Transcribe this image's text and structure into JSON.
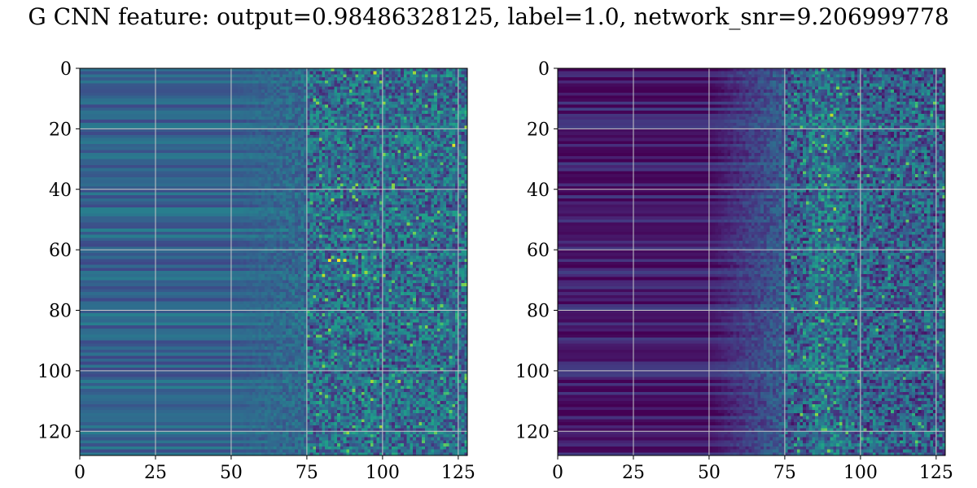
{
  "figure": {
    "title": "G CNN feature: output=0.98486328125, label=1.0, network_snr=9.206999778"
  },
  "chart_data": [
    {
      "type": "heatmap",
      "panel": "left",
      "colormap": "viridis",
      "rows": 128,
      "cols": 128,
      "xlim": [
        0,
        128
      ],
      "ylim": [
        128,
        0
      ],
      "xticks": [
        0,
        25,
        50,
        75,
        100,
        125
      ],
      "yticks": [
        0,
        20,
        40,
        60,
        80,
        100,
        120
      ],
      "grid": true,
      "value_range": [
        0,
        1
      ],
      "structure": {
        "low_region_cols": [
          0,
          50
        ],
        "transition_cols": [
          50,
          75
        ],
        "noisy_region_cols": [
          75,
          128
        ],
        "low_region_level": 0.32,
        "noisy_region_level": 0.35,
        "row_banding": true
      },
      "hotspots": [
        {
          "row": 1,
          "col": 97,
          "value": 0.9
        },
        {
          "row": 1,
          "col": 110,
          "value": 0.85
        },
        {
          "row": 25,
          "col": 123,
          "value": 0.95
        },
        {
          "row": 43,
          "col": 83,
          "value": 0.85
        },
        {
          "row": 63,
          "col": 82,
          "value": 1.0
        },
        {
          "row": 63,
          "col": 85,
          "value": 1.0
        },
        {
          "row": 63,
          "col": 87,
          "value": 0.95
        },
        {
          "row": 68,
          "col": 80,
          "value": 0.9
        },
        {
          "row": 68,
          "col": 90,
          "value": 0.9
        },
        {
          "row": 68,
          "col": 100,
          "value": 0.85
        },
        {
          "row": 98,
          "col": 80,
          "value": 0.8
        },
        {
          "row": 103,
          "col": 96,
          "value": 0.85
        },
        {
          "row": 103,
          "col": 105,
          "value": 0.85
        }
      ]
    },
    {
      "type": "heatmap",
      "panel": "right",
      "colormap": "viridis",
      "rows": 128,
      "cols": 128,
      "xlim": [
        0,
        128
      ],
      "ylim": [
        128,
        0
      ],
      "xticks": [
        0,
        25,
        50,
        75,
        100,
        125
      ],
      "yticks": [
        0,
        20,
        40,
        60,
        80,
        100,
        120
      ],
      "grid": true,
      "value_range": [
        0,
        1
      ],
      "structure": {
        "low_region_cols": [
          0,
          50
        ],
        "transition_cols": [
          50,
          75
        ],
        "noisy_region_cols": [
          75,
          128
        ],
        "low_region_level": 0.08,
        "noisy_region_level": 0.3,
        "row_banding": true,
        "bright_column_band": [
          83,
          95
        ]
      },
      "hotspots": [
        {
          "row": 15,
          "col": 90,
          "value": 0.9
        },
        {
          "row": 25,
          "col": 88,
          "value": 0.85
        },
        {
          "row": 27,
          "col": 88,
          "value": 0.8
        },
        {
          "row": 35,
          "col": 89,
          "value": 0.75
        },
        {
          "row": 38,
          "col": 88,
          "value": 0.8
        },
        {
          "row": 53,
          "col": 86,
          "value": 0.85
        },
        {
          "row": 77,
          "col": 85,
          "value": 0.85
        },
        {
          "row": 108,
          "col": 88,
          "value": 0.75
        },
        {
          "row": 114,
          "col": 80,
          "value": 0.8
        },
        {
          "row": 126,
          "col": 89,
          "value": 0.8
        }
      ]
    }
  ]
}
